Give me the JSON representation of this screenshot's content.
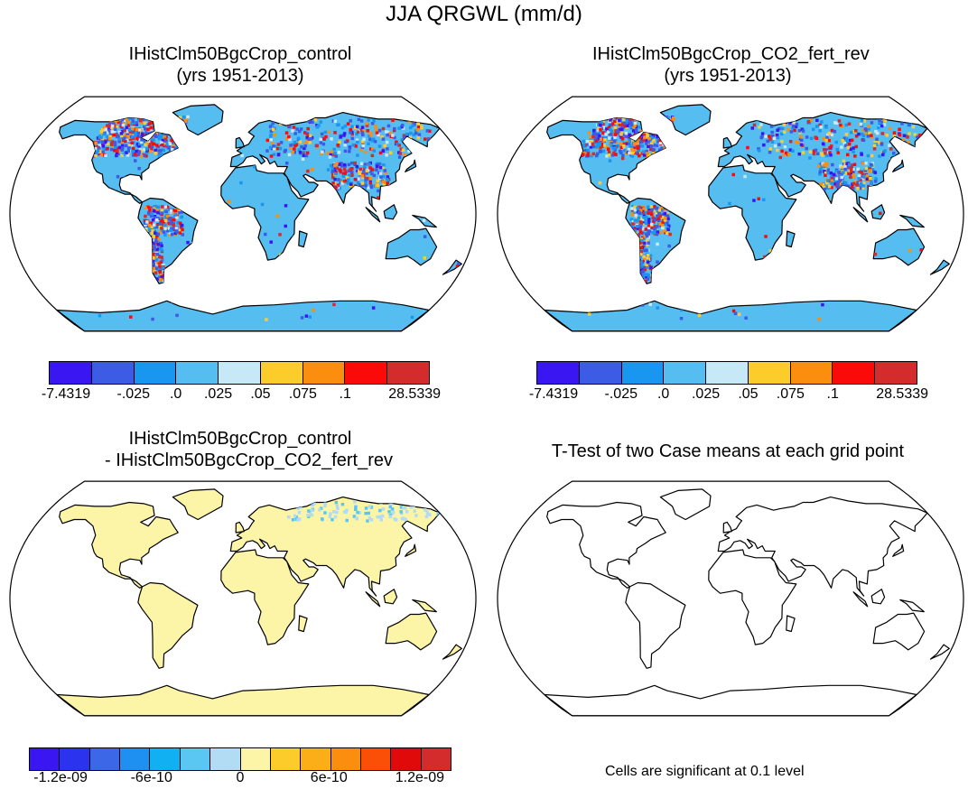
{
  "main_title": "JJA QRGWL (mm/d)",
  "panels": [
    {
      "id": "control",
      "title_line1": "IHistClm50BgcCrop_control",
      "title_line2": "(yrs 1951-2013)",
      "base_fill": "#56bdf0",
      "field": "qrgwl"
    },
    {
      "id": "co2",
      "title_line1": "IHistClm50BgcCrop_CO2_fert_rev",
      "title_line2": "(yrs 1951-2013)",
      "base_fill": "#56bdf0",
      "field": "qrgwl"
    },
    {
      "id": "diff",
      "title_line1": "IHistClm50BgcCrop_control",
      "title_line2": "- IHistClm50BgcCrop_CO2_fert_rev",
      "base_fill": "#fcf4a6",
      "field": "difference"
    },
    {
      "id": "ttest",
      "title_line1": "T-Test of two Case means at each grid point",
      "title_line2": "",
      "base_fill": "#ffffff",
      "field": "none"
    }
  ],
  "colorbar_top": {
    "colors": [
      "#3a16f2",
      "#3c5ce6",
      "#1996f0",
      "#56bdf0",
      "#c6e8f7",
      "#fccd2a",
      "#fb8e0e",
      "#fb0a0a",
      "#d42c2c"
    ],
    "labels": [
      "-7.4319",
      "-.025",
      ".0",
      ".025",
      ".05",
      ".075",
      ".1",
      "28.5339"
    ]
  },
  "colorbar_bottom": {
    "colors": [
      "#3a16f2",
      "#2b33ee",
      "#3c68e8",
      "#1e90f2",
      "#11b0f2",
      "#5ac6f2",
      "#b1dcf3",
      "#fcf4a6",
      "#fccd2a",
      "#fbae17",
      "#fb8e0e",
      "#fb4e07",
      "#e00a0a",
      "#d42c2c"
    ],
    "labels": [
      "-1.2e-09",
      "-6e-10",
      "0",
      "6e-10",
      "1.2e-09"
    ]
  },
  "significance_note": "Cells are significant at 0.1 level"
}
